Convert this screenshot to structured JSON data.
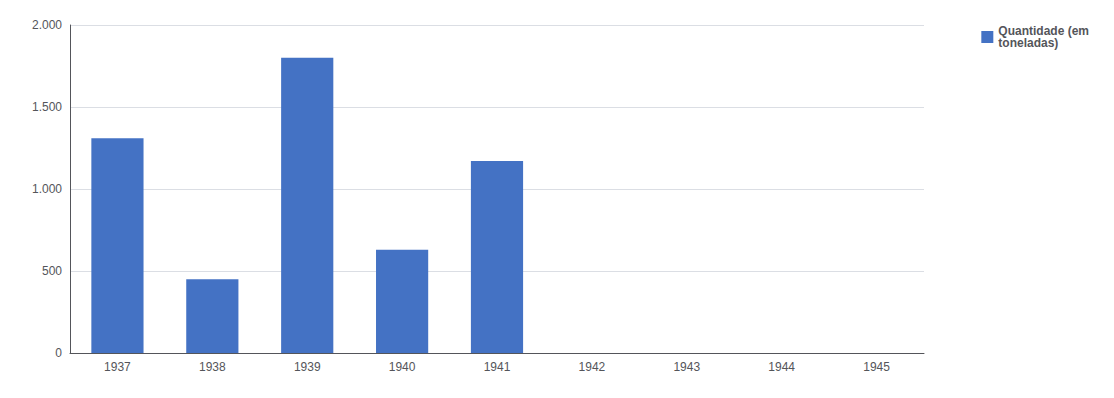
{
  "chart_data": {
    "type": "bar",
    "categories": [
      "1937",
      "1938",
      "1939",
      "1940",
      "1941",
      "1942",
      "1943",
      "1944",
      "1945"
    ],
    "series": [
      {
        "name": "Quantidade (em\ntoneladas)",
        "color": "#4472C4",
        "values": [
          1310,
          450,
          1800,
          630,
          1170,
          0,
          0,
          0,
          0
        ]
      }
    ],
    "ylim": [
      0,
      2000
    ],
    "yticks": [
      0,
      500,
      {
        "value": 1000,
        "label": "1.000"
      },
      {
        "value": 1500,
        "label": "1.500"
      },
      {
        "value": 2000,
        "label": "2.000"
      }
    ],
    "grid": true,
    "legend": "right"
  }
}
